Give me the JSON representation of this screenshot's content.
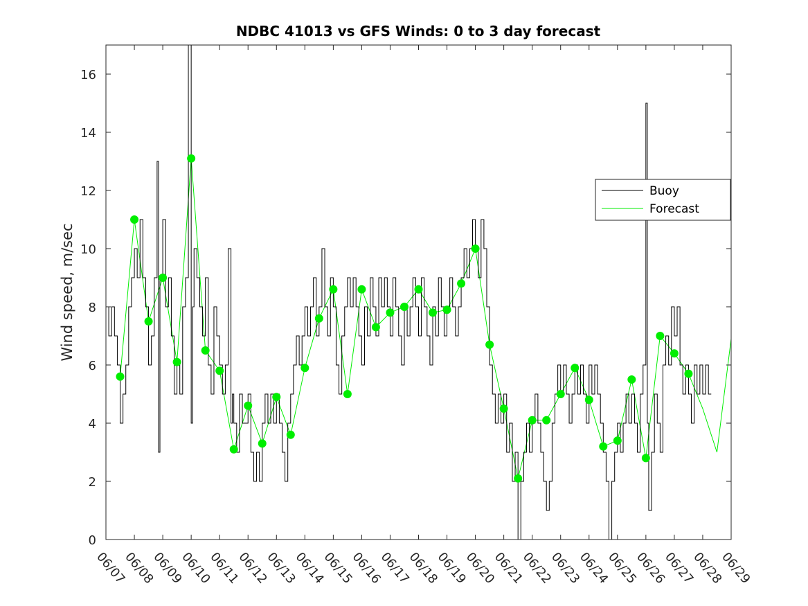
{
  "chart_data": {
    "type": "line",
    "title": "NDBC 41013 vs GFS Winds: 0 to 3 day forecast",
    "xlabel": "",
    "ylabel": "Wind speed, m/sec",
    "xlim": [
      "06/07",
      "06/29"
    ],
    "ylim": [
      0,
      17
    ],
    "x_ticks": [
      "06/07",
      "06/08",
      "06/09",
      "06/10",
      "06/11",
      "06/12",
      "06/13",
      "06/14",
      "06/15",
      "06/16",
      "06/17",
      "06/18",
      "06/19",
      "06/20",
      "06/21",
      "06/22",
      "06/23",
      "06/24",
      "06/25",
      "06/26",
      "06/27",
      "06/28",
      "06/29"
    ],
    "y_ticks": [
      0,
      2,
      4,
      6,
      8,
      10,
      12,
      14,
      16
    ],
    "grid": false,
    "legend": {
      "position": "right",
      "entries": [
        "Buoy",
        "Forecast"
      ]
    },
    "colors": {
      "buoy": "#000000",
      "forecast": "#00ee00"
    },
    "series": [
      {
        "name": "Buoy",
        "points": [
          [
            0,
            7
          ],
          [
            0.1,
            8
          ],
          [
            0.2,
            7
          ],
          [
            0.3,
            8
          ],
          [
            0.4,
            7
          ],
          [
            0.5,
            6
          ],
          [
            0.6,
            4
          ],
          [
            0.7,
            5
          ],
          [
            0.8,
            6
          ],
          [
            0.9,
            8
          ],
          [
            1.0,
            9
          ],
          [
            1.1,
            10
          ],
          [
            1.2,
            9
          ],
          [
            1.3,
            11
          ],
          [
            1.4,
            9
          ],
          [
            1.5,
            8
          ],
          [
            1.6,
            6
          ],
          [
            1.7,
            7
          ],
          [
            1.8,
            9
          ],
          [
            1.85,
            13
          ],
          [
            1.9,
            3
          ],
          [
            2.0,
            9
          ],
          [
            2.1,
            11
          ],
          [
            2.2,
            8
          ],
          [
            2.3,
            9
          ],
          [
            2.4,
            7
          ],
          [
            2.5,
            5
          ],
          [
            2.6,
            6
          ],
          [
            2.7,
            5
          ],
          [
            2.8,
            8
          ],
          [
            2.9,
            9
          ],
          [
            3.0,
            17
          ],
          [
            3.05,
            4
          ],
          [
            3.1,
            8
          ],
          [
            3.2,
            10
          ],
          [
            3.3,
            9
          ],
          [
            3.4,
            8
          ],
          [
            3.5,
            7
          ],
          [
            3.6,
            9
          ],
          [
            3.7,
            6
          ],
          [
            3.8,
            5
          ],
          [
            3.9,
            8
          ],
          [
            4.0,
            7
          ],
          [
            4.1,
            6
          ],
          [
            4.2,
            5
          ],
          [
            4.3,
            6
          ],
          [
            4.4,
            10
          ],
          [
            4.45,
            4
          ],
          [
            4.5,
            5
          ],
          [
            4.6,
            4
          ],
          [
            4.7,
            3
          ],
          [
            4.8,
            5
          ],
          [
            4.9,
            4
          ],
          [
            5.0,
            4
          ],
          [
            5.1,
            5
          ],
          [
            5.2,
            3
          ],
          [
            5.3,
            2
          ],
          [
            5.4,
            3
          ],
          [
            5.5,
            2
          ],
          [
            5.6,
            4
          ],
          [
            5.7,
            5
          ],
          [
            5.8,
            4
          ],
          [
            5.9,
            5
          ],
          [
            6.0,
            4
          ],
          [
            6.1,
            5
          ],
          [
            6.2,
            4
          ],
          [
            6.3,
            3
          ],
          [
            6.4,
            2
          ],
          [
            6.5,
            4
          ],
          [
            6.6,
            5
          ],
          [
            6.7,
            6
          ],
          [
            6.8,
            7
          ],
          [
            6.9,
            6
          ],
          [
            7.0,
            7
          ],
          [
            7.1,
            8
          ],
          [
            7.2,
            7
          ],
          [
            7.3,
            8
          ],
          [
            7.4,
            9
          ],
          [
            7.5,
            7
          ],
          [
            7.6,
            8
          ],
          [
            7.7,
            10
          ],
          [
            7.8,
            8
          ],
          [
            7.9,
            7
          ],
          [
            8.0,
            9
          ],
          [
            8.1,
            8
          ],
          [
            8.2,
            6
          ],
          [
            8.3,
            5
          ],
          [
            8.4,
            7
          ],
          [
            8.5,
            8
          ],
          [
            8.6,
            9
          ],
          [
            8.7,
            8
          ],
          [
            8.8,
            9
          ],
          [
            8.9,
            8
          ],
          [
            9.0,
            7
          ],
          [
            9.1,
            6
          ],
          [
            9.2,
            8
          ],
          [
            9.3,
            7
          ],
          [
            9.4,
            9
          ],
          [
            9.5,
            8
          ],
          [
            9.6,
            7
          ],
          [
            9.7,
            9
          ],
          [
            9.8,
            8
          ],
          [
            9.9,
            9
          ],
          [
            10.0,
            8
          ],
          [
            10.1,
            7
          ],
          [
            10.2,
            9
          ],
          [
            10.3,
            8
          ],
          [
            10.4,
            7
          ],
          [
            10.5,
            6
          ],
          [
            10.6,
            8
          ],
          [
            10.7,
            7
          ],
          [
            10.8,
            8
          ],
          [
            10.9,
            9
          ],
          [
            11.0,
            8
          ],
          [
            11.1,
            7
          ],
          [
            11.2,
            9
          ],
          [
            11.3,
            8
          ],
          [
            11.4,
            7
          ],
          [
            11.5,
            6
          ],
          [
            11.6,
            8
          ],
          [
            11.7,
            7
          ],
          [
            11.8,
            9
          ],
          [
            11.9,
            8
          ],
          [
            12.0,
            7
          ],
          [
            12.1,
            8
          ],
          [
            12.2,
            9
          ],
          [
            12.3,
            8
          ],
          [
            12.4,
            7
          ],
          [
            12.5,
            8
          ],
          [
            12.6,
            9
          ],
          [
            12.7,
            10
          ],
          [
            12.8,
            9
          ],
          [
            12.9,
            10
          ],
          [
            13.0,
            11
          ],
          [
            13.1,
            10
          ],
          [
            13.2,
            9
          ],
          [
            13.3,
            11
          ],
          [
            13.4,
            10
          ],
          [
            13.5,
            8
          ],
          [
            13.6,
            6
          ],
          [
            13.7,
            5
          ],
          [
            13.8,
            4
          ],
          [
            13.9,
            5
          ],
          [
            14.0,
            4
          ],
          [
            14.1,
            5
          ],
          [
            14.2,
            3
          ],
          [
            14.3,
            4
          ],
          [
            14.4,
            2
          ],
          [
            14.5,
            3
          ],
          [
            14.6,
            0
          ],
          [
            14.7,
            2
          ],
          [
            14.8,
            3
          ],
          [
            14.9,
            4
          ],
          [
            15.0,
            3
          ],
          [
            15.1,
            4
          ],
          [
            15.2,
            5
          ],
          [
            15.3,
            4
          ],
          [
            15.4,
            3
          ],
          [
            15.5,
            2
          ],
          [
            15.6,
            1
          ],
          [
            15.7,
            2
          ],
          [
            15.8,
            4
          ],
          [
            15.9,
            5
          ],
          [
            16.0,
            6
          ],
          [
            16.1,
            5
          ],
          [
            16.2,
            6
          ],
          [
            16.3,
            5
          ],
          [
            16.4,
            4
          ],
          [
            16.5,
            5
          ],
          [
            16.6,
            6
          ],
          [
            16.7,
            5
          ],
          [
            16.8,
            6
          ],
          [
            16.9,
            5
          ],
          [
            17.0,
            4
          ],
          [
            17.1,
            6
          ],
          [
            17.2,
            5
          ],
          [
            17.3,
            6
          ],
          [
            17.4,
            5
          ],
          [
            17.5,
            4
          ],
          [
            17.6,
            3
          ],
          [
            17.7,
            2
          ],
          [
            17.8,
            0
          ],
          [
            17.9,
            2
          ],
          [
            18.0,
            3
          ],
          [
            18.1,
            4
          ],
          [
            18.2,
            3
          ],
          [
            18.3,
            4
          ],
          [
            18.4,
            5
          ],
          [
            18.5,
            4
          ],
          [
            18.6,
            5
          ],
          [
            18.7,
            4
          ],
          [
            18.8,
            3
          ],
          [
            18.9,
            5
          ],
          [
            19.0,
            6
          ],
          [
            19.05,
            15
          ],
          [
            19.1,
            4
          ],
          [
            19.2,
            1
          ],
          [
            19.3,
            3
          ],
          [
            19.4,
            5
          ],
          [
            19.5,
            4
          ],
          [
            19.6,
            3
          ],
          [
            19.7,
            6
          ],
          [
            19.8,
            7
          ],
          [
            19.9,
            6
          ],
          [
            20.0,
            8
          ],
          [
            20.1,
            7
          ],
          [
            20.2,
            8
          ],
          [
            20.3,
            6
          ],
          [
            20.4,
            5
          ],
          [
            20.5,
            6
          ],
          [
            20.6,
            5
          ],
          [
            20.7,
            4
          ],
          [
            20.8,
            6
          ],
          [
            20.9,
            5
          ],
          [
            21.0,
            6
          ],
          [
            21.1,
            5
          ],
          [
            21.2,
            6
          ],
          [
            21.3,
            5
          ]
        ]
      },
      {
        "name": "Forecast",
        "points": [
          [
            0.5,
            5.6
          ],
          [
            1.0,
            11.0
          ],
          [
            1.5,
            7.5
          ],
          [
            2.0,
            9.0
          ],
          [
            2.5,
            6.1
          ],
          [
            3.0,
            13.1
          ],
          [
            3.5,
            6.5
          ],
          [
            4.0,
            5.8
          ],
          [
            4.5,
            3.1
          ],
          [
            5.0,
            4.6
          ],
          [
            5.5,
            3.3
          ],
          [
            6.0,
            4.9
          ],
          [
            6.5,
            3.6
          ],
          [
            7.0,
            5.9
          ],
          [
            7.5,
            7.6
          ],
          [
            8.0,
            8.6
          ],
          [
            8.5,
            5.0
          ],
          [
            9.0,
            8.6
          ],
          [
            9.5,
            7.3
          ],
          [
            10.0,
            7.8
          ],
          [
            10.5,
            8.0
          ],
          [
            11.0,
            8.6
          ],
          [
            11.5,
            7.8
          ],
          [
            12.0,
            7.9
          ],
          [
            12.5,
            8.8
          ],
          [
            13.0,
            10.0
          ],
          [
            13.5,
            6.7
          ],
          [
            14.0,
            4.5
          ],
          [
            14.5,
            2.1
          ],
          [
            15.0,
            4.1
          ],
          [
            15.5,
            4.1
          ],
          [
            16.0,
            5.0
          ],
          [
            16.5,
            5.9
          ],
          [
            17.0,
            4.8
          ],
          [
            17.5,
            3.2
          ],
          [
            18.0,
            3.4
          ],
          [
            18.5,
            5.5
          ],
          [
            19.0,
            2.8
          ],
          [
            19.5,
            7.0
          ],
          [
            20.0,
            6.4
          ],
          [
            20.5,
            5.7
          ],
          [
            21.0,
            4.5
          ],
          [
            21.5,
            3.0
          ],
          [
            22.0,
            6.9
          ]
        ]
      }
    ],
    "forecast_markers": [
      [
        0.5,
        5.6
      ],
      [
        1.0,
        11.0
      ],
      [
        1.5,
        7.5
      ],
      [
        2.0,
        9.0
      ],
      [
        2.5,
        6.1
      ],
      [
        3.0,
        13.1
      ],
      [
        3.5,
        6.5
      ],
      [
        4.0,
        5.8
      ],
      [
        4.5,
        3.1
      ],
      [
        5.0,
        4.6
      ],
      [
        5.5,
        3.3
      ],
      [
        6.0,
        4.9
      ],
      [
        6.5,
        3.6
      ],
      [
        7.0,
        5.9
      ],
      [
        7.5,
        7.6
      ],
      [
        8.0,
        8.6
      ],
      [
        8.5,
        5.0
      ],
      [
        9.0,
        8.6
      ],
      [
        9.5,
        7.3
      ],
      [
        10.0,
        7.8
      ],
      [
        10.5,
        8.0
      ],
      [
        11.0,
        8.6
      ],
      [
        11.5,
        7.8
      ],
      [
        12.0,
        7.9
      ],
      [
        12.5,
        8.8
      ],
      [
        13.0,
        10.0
      ],
      [
        13.5,
        6.7
      ],
      [
        14.0,
        4.5
      ],
      [
        14.5,
        2.1
      ],
      [
        15.0,
        4.1
      ],
      [
        15.5,
        4.1
      ],
      [
        16.0,
        5.0
      ],
      [
        16.5,
        5.9
      ],
      [
        17.0,
        4.8
      ],
      [
        17.5,
        3.2
      ],
      [
        18.0,
        3.4
      ],
      [
        18.5,
        5.5
      ],
      [
        19.0,
        2.8
      ],
      [
        19.5,
        7.0
      ],
      [
        20.0,
        6.4
      ],
      [
        20.5,
        5.7
      ]
    ]
  }
}
